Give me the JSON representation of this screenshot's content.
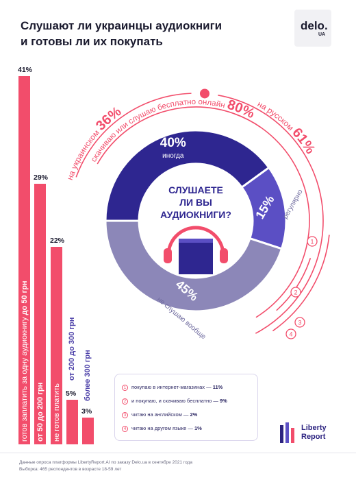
{
  "header": {
    "title_line1": "Слушают ли украинцы аудиокниги",
    "title_line2": "и готовы ли их покупать",
    "logo_main": "delo.",
    "logo_sub": "UA"
  },
  "chart_data": [
    {
      "type": "bar",
      "categories": [
        "готов заплатить за одну аудиокнигу до 50 грн",
        "от 50 до 200 грн",
        "не готов платить",
        "от 200 до 300 грн",
        "более 300 грн"
      ],
      "values": [
        41,
        29,
        22,
        5,
        3
      ],
      "labels": [
        "41%",
        "29%",
        "22%",
        "5%",
        "3%"
      ],
      "color": "#f24d6b"
    },
    {
      "type": "pie",
      "title": "СЛУШАЕТЕ ЛИ ВЫ АУДИОКНИГИ?",
      "slices": [
        {
          "label": "иногда",
          "value": 40,
          "text": "40%",
          "color": "#2e2690"
        },
        {
          "label": "регулярно",
          "value": 15,
          "text": "15%",
          "color": "#5b4fc4"
        },
        {
          "label": "не слушаю вообще",
          "value": 45,
          "text": "45%",
          "color": "#8c87b8"
        }
      ]
    }
  ],
  "arcs": {
    "ukrainian_label": "на украинском",
    "ukrainian_value": "36%",
    "russian_label": "на русском",
    "russian_value": "61%",
    "download_label": "скачиваю или слушаю бесплатно онлайн",
    "download_value": "80%",
    "arc_color": "#f24d6b",
    "markers": [
      "1",
      "2",
      "3",
      "4"
    ]
  },
  "legend": {
    "items": [
      {
        "num": "1",
        "text": "покупаю в интернет-магазинах — ",
        "value": "11%"
      },
      {
        "num": "2",
        "text": "и покупаю, и скачиваю бесплатно — ",
        "value": "9%"
      },
      {
        "num": "3",
        "text": "читаю на английском — ",
        "value": "2%"
      },
      {
        "num": "4",
        "text": "читаю на другом языке — ",
        "value": "1%"
      }
    ]
  },
  "brand": {
    "line1": "Liberty",
    "line2": "Report"
  },
  "footer": {
    "line1": "Данные опроса платформы LibertyReport.AI по заказу Delo.ua в сентябре 2021 года",
    "line2": "Выборка: 465 респондентов в возрасте 18-59 лет"
  }
}
